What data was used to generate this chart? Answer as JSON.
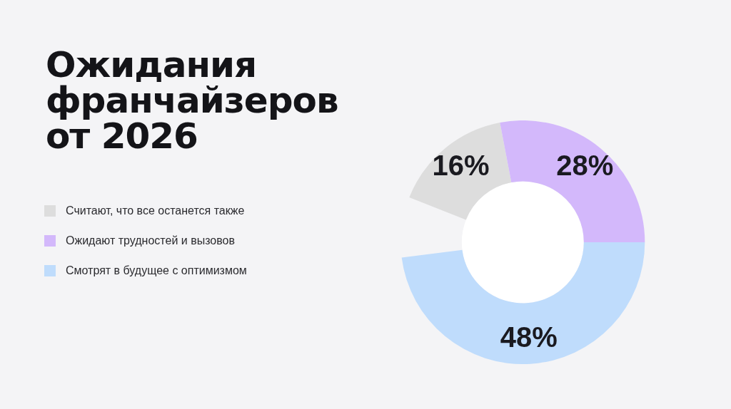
{
  "chart_data": {
    "type": "donut",
    "title": "Ожидания франчайзеров от 2026",
    "categories": [
      "Считают, что все останется также",
      "Ожидают трудностей и вызовов",
      "Смотрят в будущее с оптимизмом"
    ],
    "values": [
      16,
      28,
      48
    ],
    "colors": [
      "#dddddd",
      "#d3b8fb",
      "#bfdcfc"
    ],
    "value_labels": [
      "16%",
      "28%",
      "48%"
    ],
    "legend": "left"
  }
}
